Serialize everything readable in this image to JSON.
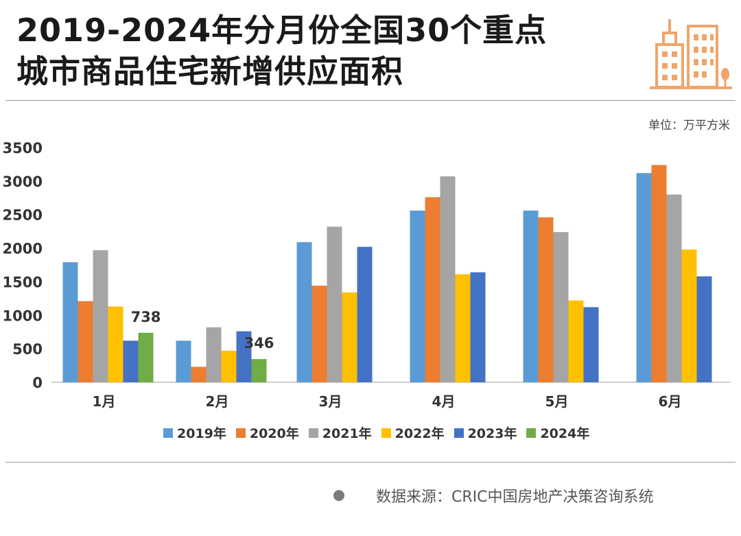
{
  "header": {
    "title_line1": "2019-2024年分月份全国30个重点",
    "title_line2": "城市商品住宅新增供应面积",
    "unit": "单位：万平方米"
  },
  "logo": {
    "icon": "city-buildings-icon",
    "color": "#f0a56a"
  },
  "footer": {
    "source": "数据来源：CRIC中国房地产决策咨询系统"
  },
  "chart_data": {
    "type": "bar",
    "categories": [
      "1月",
      "2月",
      "3月",
      "4月",
      "5月",
      "6月"
    ],
    "ylim": [
      0,
      3500
    ],
    "yticks": [
      0,
      500,
      1000,
      1500,
      2000,
      2500,
      3000,
      3500
    ],
    "grid": false,
    "legend_position": "bottom",
    "series": [
      {
        "name": "2019年",
        "color": "#5b9bd5",
        "values": [
          1790,
          620,
          2090,
          2560,
          2560,
          3120
        ]
      },
      {
        "name": "2020年",
        "color": "#ed7d31",
        "values": [
          1210,
          230,
          1440,
          2760,
          2460,
          3240
        ]
      },
      {
        "name": "2021年",
        "color": "#a5a5a5",
        "values": [
          1970,
          820,
          2320,
          3070,
          2240,
          2800
        ]
      },
      {
        "name": "2022年",
        "color": "#ffc000",
        "values": [
          1130,
          470,
          1340,
          1610,
          1220,
          1980
        ]
      },
      {
        "name": "2023年",
        "color": "#4472c4",
        "values": [
          620,
          760,
          2020,
          1640,
          1120,
          1580
        ]
      },
      {
        "name": "2024年",
        "color": "#70ad47",
        "values": [
          738,
          346,
          null,
          null,
          null,
          null
        ]
      }
    ],
    "data_labels": [
      {
        "series": "2024年",
        "category": "1月",
        "text": "738"
      },
      {
        "series": "2024年",
        "category": "2月",
        "text": "346"
      }
    ]
  }
}
